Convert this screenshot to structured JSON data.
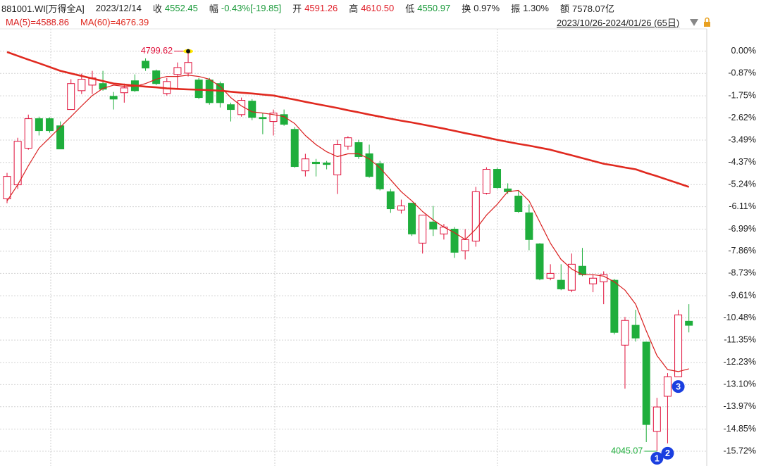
{
  "chart_data": {
    "type": "candlestick",
    "header": {
      "code": "881001.WI[万得全A]",
      "date": "2023/12/14",
      "quote": [
        {
          "label": "收",
          "value": "4552.45",
          "color": "#1a9a3a"
        },
        {
          "label": "幅",
          "value": "-0.43%[-19.85]",
          "color": "#1a9a3a"
        },
        {
          "label": "开",
          "value": "4591.26",
          "color": "#e0202a"
        },
        {
          "label": "高",
          "value": "4610.50",
          "color": "#e0202a"
        },
        {
          "label": "低",
          "value": "4550.97",
          "color": "#1a9a3a"
        },
        {
          "label": "换",
          "value": "0.97%",
          "color": "#222222"
        },
        {
          "label": "振",
          "value": "1.30%",
          "color": "#222222"
        },
        {
          "label": "额",
          "value": "7578.07亿",
          "color": "#222222"
        }
      ],
      "range_label": "2023/10/26-2024/01/26 (65日)"
    },
    "categories": [
      null,
      null,
      null,
      null,
      null,
      null,
      null,
      null,
      null,
      null,
      null,
      null,
      null,
      null,
      null,
      null,
      null,
      null,
      null,
      null,
      null,
      null,
      null,
      null,
      null,
      null,
      null,
      null,
      null,
      null,
      null,
      null,
      null,
      null,
      null,
      null,
      null,
      null,
      null,
      null,
      null,
      null,
      null,
      null,
      null,
      null,
      null,
      null,
      null,
      null,
      null,
      null,
      null,
      null,
      null,
      null,
      null,
      null,
      null,
      null,
      null,
      null,
      null,
      null,
      null
    ],
    "open": [
      -5.8,
      -5.25,
      -3.81,
      -2.65,
      -2.65,
      -2.93,
      -2.29,
      -1.55,
      -1.33,
      -1.27,
      -1.77,
      -1.63,
      -1.16,
      -0.39,
      -0.77,
      -1.66,
      -0.91,
      -0.86,
      -1.13,
      -1.13,
      -1.27,
      -2.1,
      -2.49,
      -1.96,
      -2.6,
      -2.76,
      -2.49,
      -3.07,
      -4.7,
      -4.36,
      -4.39,
      -4.86,
      -3.73,
      -3.59,
      -4.03,
      -4.42,
      -5.52,
      -6.24,
      -5.97,
      -7.54,
      -6.71,
      -7.18,
      -6.99,
      -7.84,
      -7.46,
      -5.58,
      -4.64,
      -5.41,
      -5.69,
      -6.35,
      -7.57,
      -8.92,
      -9.0,
      -9.39,
      -8.45,
      -9.14,
      -9.06,
      -9.0,
      -11.55,
      -10.77,
      -11.43,
      -14.94,
      -13.56,
      -12.79,
      -10.61
    ],
    "high": [
      -4.78,
      -3.4,
      -2.49,
      -2.57,
      -2.6,
      -2.76,
      -1.1,
      -0.88,
      -0.77,
      -0.77,
      -1.6,
      -1.27,
      -0.91,
      -0.28,
      -0.72,
      -1.05,
      -0.44,
      0,
      -1.05,
      -1.05,
      -1.19,
      -2.02,
      -1.82,
      -1.88,
      -2.43,
      -2.29,
      -2.29,
      -2.98,
      -4.03,
      -4.23,
      -4.31,
      -3.48,
      -3.34,
      -3.48,
      -3.67,
      -4.31,
      -5.41,
      -5.83,
      -5.97,
      -6.44,
      -6.08,
      -6.79,
      -6.91,
      -6.99,
      -5.33,
      -4.56,
      -4.58,
      -5.19,
      -5.47,
      -6.02,
      -7.54,
      -8.37,
      -8.37,
      -7.95,
      -7.73,
      -8.78,
      -8.65,
      -8.95,
      -10.44,
      -10.16,
      -11.41,
      -13.62,
      -12.65,
      -10.16,
      -9.94
    ],
    "low": [
      -5.97,
      -5.41,
      -3.87,
      -3.31,
      -3.2,
      -3.84,
      -2.29,
      -1.68,
      -1.68,
      -1.55,
      -2.29,
      -2.02,
      -1.6,
      -0.77,
      -1.33,
      -1.74,
      -1.46,
      -0.99,
      -1.88,
      -2.1,
      -2.21,
      -2.76,
      -2.57,
      -2.71,
      -3.26,
      -3.31,
      -2.93,
      -4.58,
      -4.92,
      -4.92,
      -4.64,
      -5.61,
      -3.87,
      -4.23,
      -4.97,
      -5.47,
      -6.35,
      -6.38,
      -7.26,
      -7.95,
      -7.26,
      -7.4,
      -8.12,
      -8.18,
      -7.68,
      -5.63,
      -5.41,
      -5.61,
      -6.35,
      -7.82,
      -9.0,
      -9.0,
      -9.39,
      -9.47,
      -8.84,
      -9.47,
      -9.94,
      -11.13,
      -13.26,
      -11.41,
      -15.36,
      -15.72,
      -15.41,
      -12.79,
      -11.05
    ],
    "close": [
      -4.92,
      -3.54,
      -2.65,
      -3.12,
      -3.12,
      -3.84,
      -1.27,
      -1.1,
      -1.05,
      -1.49,
      -1.88,
      -1.44,
      -1.55,
      -0.66,
      -1.27,
      -1.19,
      -0.64,
      -0.44,
      -1.82,
      -2.02,
      -2.02,
      -2.29,
      -1.93,
      -2.6,
      -2.65,
      -2.43,
      -2.87,
      -4.53,
      -4.23,
      -4.42,
      -4.45,
      -3.67,
      -3.4,
      -4.14,
      -4.92,
      -5.41,
      -6.19,
      -6.08,
      -7.18,
      -6.44,
      -6.99,
      -6.91,
      -7.9,
      -7.4,
      -5.52,
      -4.64,
      -5.36,
      -5.52,
      -6.3,
      -7.4,
      -8.95,
      -8.73,
      -9.34,
      -8.37,
      -8.78,
      -8.92,
      -8.78,
      -11.05,
      -10.58,
      -11.27,
      -14.67,
      -13.98,
      -12.79,
      -10.36,
      -10.77
    ],
    "up_color": "#e0103a",
    "down_color": "#1fae3c",
    "series": [
      {
        "name": "MA(5)=4588.86",
        "color": "#d91e1e",
        "values": [
          -5.88,
          -5.25,
          -4.5,
          -3.81,
          -3.4,
          -2.98,
          -2.57,
          -2.15,
          -1.74,
          -1.46,
          -1.33,
          -1.38,
          -1.38,
          -1.27,
          -1.1,
          -0.99,
          -0.99,
          -0.94,
          -0.99,
          -1.1,
          -1.38,
          -1.82,
          -2.15,
          -2.38,
          -2.43,
          -2.49,
          -2.57,
          -2.84,
          -3.31,
          -3.67,
          -3.95,
          -4.14,
          -4.03,
          -4.03,
          -4.23,
          -4.58,
          -5.05,
          -5.52,
          -5.88,
          -6.3,
          -6.63,
          -6.91,
          -7.13,
          -7.4,
          -6.99,
          -6.44,
          -6.02,
          -5.52,
          -5.47,
          -5.88,
          -6.71,
          -7.54,
          -8.18,
          -8.56,
          -8.78,
          -8.78,
          -8.84,
          -9.06,
          -9.39,
          -9.94,
          -10.99,
          -11.96,
          -12.51,
          -12.59,
          -12.48
        ]
      },
      {
        "name": "MA(60)=4676.39",
        "color": "#e0291f",
        "values": [
          -0.03,
          -0.18,
          -0.33,
          -0.47,
          -0.62,
          -0.77,
          -0.87,
          -0.97,
          -1.07,
          -1.17,
          -1.27,
          -1.31,
          -1.35,
          -1.39,
          -1.42,
          -1.46,
          -1.48,
          -1.5,
          -1.51,
          -1.53,
          -1.55,
          -1.59,
          -1.63,
          -1.66,
          -1.7,
          -1.74,
          -1.82,
          -1.9,
          -1.99,
          -2.07,
          -2.15,
          -2.23,
          -2.32,
          -2.4,
          -2.49,
          -2.57,
          -2.65,
          -2.73,
          -2.8,
          -2.88,
          -2.96,
          -3.04,
          -3.13,
          -3.22,
          -3.3,
          -3.39,
          -3.48,
          -3.56,
          -3.64,
          -3.71,
          -3.79,
          -3.87,
          -3.98,
          -4.09,
          -4.2,
          -4.31,
          -4.42,
          -4.49,
          -4.57,
          -4.64,
          -4.78,
          -4.91,
          -5.05,
          -5.19,
          -5.33
        ]
      }
    ],
    "max_label": "4799.62",
    "min_label": "4045.07",
    "signals": [
      null,
      null,
      null,
      null,
      null,
      null,
      null,
      null,
      null,
      null,
      null,
      null,
      null,
      null,
      null,
      null,
      null,
      null,
      null,
      null,
      null,
      null,
      null,
      null,
      null,
      null,
      null,
      null,
      null,
      null,
      null,
      null,
      null,
      null,
      null,
      null,
      null,
      null,
      null,
      null,
      null,
      null,
      null,
      null,
      null,
      null,
      null,
      null,
      null,
      null,
      null,
      null,
      null,
      null,
      null,
      null,
      null,
      null,
      null,
      null,
      null,
      "1",
      "2",
      "3",
      null
    ],
    "signal_color": "#1a3fe0",
    "ylim": [
      -16.3,
      0.88
    ],
    "yticks": [
      {
        "value": 0,
        "label": "0.00%"
      },
      {
        "value": -0.87,
        "label": "-0.87%"
      },
      {
        "value": -1.75,
        "label": "-1.75%"
      },
      {
        "value": -2.62,
        "label": "-2.62%"
      },
      {
        "value": -3.49,
        "label": "-3.49%"
      },
      {
        "value": -4.37,
        "label": "-4.37%"
      },
      {
        "value": -5.24,
        "label": "-5.24%"
      },
      {
        "value": -6.11,
        "label": "-6.11%"
      },
      {
        "value": -6.99,
        "label": "-6.99%"
      },
      {
        "value": -7.86,
        "label": "-7.86%"
      },
      {
        "value": -8.73,
        "label": "-8.73%"
      },
      {
        "value": -9.61,
        "label": "-9.61%"
      },
      {
        "value": -10.48,
        "label": "-10.48%"
      },
      {
        "value": -11.35,
        "label": "-11.35%"
      },
      {
        "value": -12.23,
        "label": "-12.23%"
      },
      {
        "value": -13.1,
        "label": "-13.10%"
      },
      {
        "value": -13.97,
        "label": "-13.97%"
      },
      {
        "value": -14.85,
        "label": "-14.85%"
      },
      {
        "value": -15.72,
        "label": "-15.72%"
      }
    ],
    "grid": true
  }
}
